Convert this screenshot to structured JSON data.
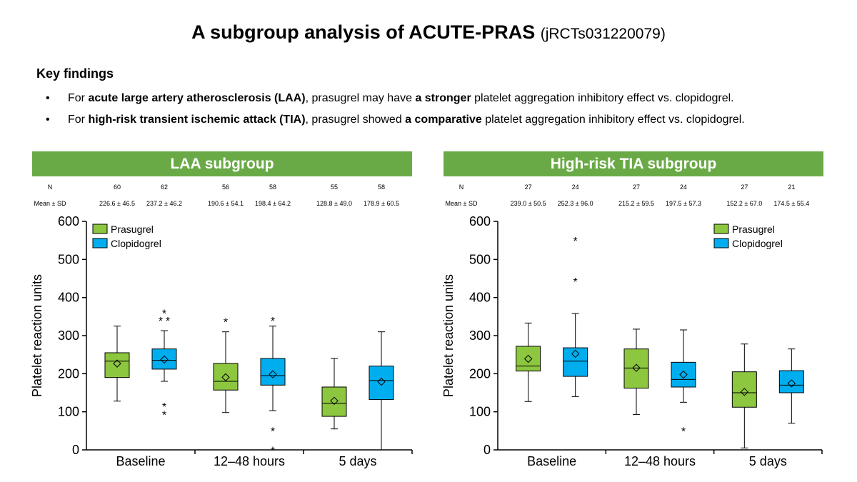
{
  "header": {
    "title_bold": "A subgroup analysis of ACUTE-PRAS",
    "title_sub": "(jRCTs031220079)"
  },
  "key_findings": {
    "heading": "Key findings",
    "bullet": "•",
    "items": [
      [
        {
          "t": "For ",
          "b": false
        },
        {
          "t": "acute large artery atherosclerosis (LAA)",
          "b": true
        },
        {
          "t": ", prasugrel may have ",
          "b": false
        },
        {
          "t": "a stronger",
          "b": true
        },
        {
          "t": " platelet aggregation inhibitory effect vs. clopidogrel.",
          "b": false
        }
      ],
      [
        {
          "t": "For ",
          "b": false
        },
        {
          "t": "high-risk transient ischemic attack (TIA)",
          "b": true
        },
        {
          "t": ", prasugrel showed ",
          "b": false
        },
        {
          "t": "a comparative",
          "b": true
        },
        {
          "t": " platelet aggregation inhibitory effect vs. clopidogrel.",
          "b": false
        }
      ]
    ]
  },
  "colors": {
    "prasugrel": "#8dc63f",
    "clopidogrel": "#00aeef",
    "header_bg": "#6aaa46"
  },
  "chart_data": [
    {
      "type": "box",
      "title": "LAA subgroup",
      "ylabel": "Platelet reaction units",
      "ylim": [
        0,
        600
      ],
      "yticks": [
        0,
        100,
        200,
        300,
        400,
        500,
        600
      ],
      "categories": [
        "Baseline",
        "12–48 hours",
        "5 days"
      ],
      "legend": {
        "position": "top-left",
        "entries": [
          "Prasugrel",
          "Clopidogrel"
        ]
      },
      "table_labels": {
        "n": "N",
        "mean": "Mean ± SD"
      },
      "boxes": [
        {
          "category": "Baseline",
          "series": "Prasugrel",
          "n": "60",
          "mean_sd": "226.6 ± 46.5",
          "mean": 226.6,
          "median": 233,
          "q1": 190,
          "q3": 255,
          "whisker_low": 128,
          "whisker_high": 325,
          "outliers": []
        },
        {
          "category": "Baseline",
          "series": "Clopidogrel",
          "n": "62",
          "mean_sd": "237.2 ± 46.2",
          "mean": 237.2,
          "median": 235,
          "q1": 212,
          "q3": 265,
          "whisker_low": 180,
          "whisker_high": 313,
          "outliers": [
            365,
            345,
            345,
            120,
            98
          ]
        },
        {
          "category": "12–48 hours",
          "series": "Prasugrel",
          "n": "56",
          "mean_sd": "190.6 ± 54.1",
          "mean": 190.6,
          "median": 180,
          "q1": 157,
          "q3": 227,
          "whisker_low": 98,
          "whisker_high": 310,
          "outliers": [
            342
          ]
        },
        {
          "category": "12–48 hours",
          "series": "Clopidogrel",
          "n": "58",
          "mean_sd": "198.4 ± 64.2",
          "mean": 198.4,
          "median": 195,
          "q1": 170,
          "q3": 240,
          "whisker_low": 103,
          "whisker_high": 325,
          "outliers": [
            345,
            55,
            5
          ]
        },
        {
          "category": "5 days",
          "series": "Prasugrel",
          "n": "55",
          "mean_sd": "128.8 ± 49.0",
          "mean": 128.8,
          "median": 122,
          "q1": 88,
          "q3": 165,
          "whisker_low": 55,
          "whisker_high": 240,
          "outliers": []
        },
        {
          "category": "5 days",
          "series": "Clopidogrel",
          "n": "58",
          "mean_sd": "178.9 ± 60.5",
          "mean": 178.9,
          "median": 182,
          "q1": 132,
          "q3": 220,
          "whisker_low": 0,
          "whisker_high": 310,
          "outliers": []
        }
      ]
    },
    {
      "type": "box",
      "title": "High-risk TIA subgroup",
      "ylabel": "Platelet reaction units",
      "ylim": [
        0,
        600
      ],
      "yticks": [
        0,
        100,
        200,
        300,
        400,
        500,
        600
      ],
      "categories": [
        "Baseline",
        "12–48 hours",
        "5 days"
      ],
      "legend": {
        "position": "top-right",
        "entries": [
          "Prasugrel",
          "Clopidogrel"
        ]
      },
      "table_labels": {
        "n": "N",
        "mean": "Mean ± SD"
      },
      "boxes": [
        {
          "category": "Baseline",
          "series": "Prasugrel",
          "n": "27",
          "mean_sd": "239.0 ± 50.5",
          "mean": 239.0,
          "median": 220,
          "q1": 207,
          "q3": 272,
          "whisker_low": 127,
          "whisker_high": 333,
          "outliers": []
        },
        {
          "category": "Baseline",
          "series": "Clopidogrel",
          "n": "24",
          "mean_sd": "252.3 ± 96.0",
          "mean": 252.3,
          "median": 233,
          "q1": 193,
          "q3": 268,
          "whisker_low": 140,
          "whisker_high": 358,
          "outliers": [
            555,
            448
          ]
        },
        {
          "category": "12–48 hours",
          "series": "Prasugrel",
          "n": "27",
          "mean_sd": "215.2 ± 59.5",
          "mean": 215.2,
          "median": 215,
          "q1": 162,
          "q3": 265,
          "whisker_low": 93,
          "whisker_high": 317,
          "outliers": []
        },
        {
          "category": "12–48 hours",
          "series": "Clopidogrel",
          "n": "24",
          "mean_sd": "197.5 ± 57.3",
          "mean": 197.5,
          "median": 185,
          "q1": 165,
          "q3": 230,
          "whisker_low": 125,
          "whisker_high": 315,
          "outliers": [
            55
          ]
        },
        {
          "category": "5 days",
          "series": "Prasugrel",
          "n": "27",
          "mean_sd": "152.2 ± 67.0",
          "mean": 152.2,
          "median": 150,
          "q1": 112,
          "q3": 205,
          "whisker_low": 5,
          "whisker_high": 278,
          "outliers": []
        },
        {
          "category": "5 days",
          "series": "Clopidogrel",
          "n": "21",
          "mean_sd": "174.5 ± 55.4",
          "mean": 174.5,
          "median": 170,
          "q1": 150,
          "q3": 208,
          "whisker_low": 70,
          "whisker_high": 265,
          "outliers": []
        }
      ]
    }
  ]
}
